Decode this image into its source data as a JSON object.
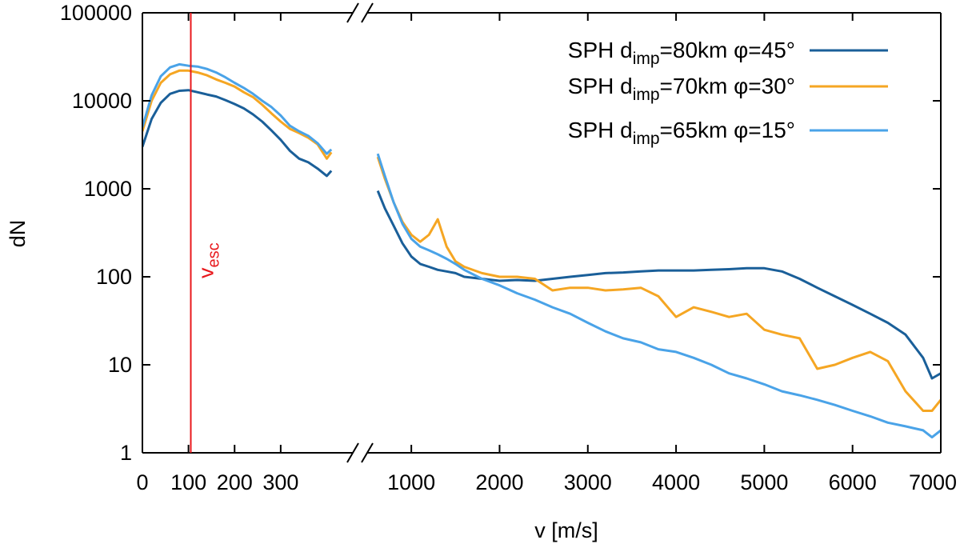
{
  "chart_data": {
    "type": "line",
    "title": "",
    "xlabel": "v [m/s]",
    "ylabel": "dN",
    "yscale": "log",
    "ylim": [
      1,
      100000
    ],
    "x_axis_break": true,
    "x_segments": [
      {
        "name": "low",
        "xlim": [
          0,
          420
        ],
        "ticks": [
          0,
          100,
          200,
          300
        ],
        "tick_labels": [
          "0",
          "100",
          "200",
          "300"
        ]
      },
      {
        "name": "high",
        "xlim": [
          500,
          7000
        ],
        "ticks": [
          1000,
          2000,
          3000,
          4000,
          5000,
          6000,
          7000
        ],
        "tick_labels": [
          "1000",
          "2000",
          "3000",
          "4000",
          "5000",
          "6000",
          "7000"
        ]
      }
    ],
    "y_ticks": [
      1,
      10,
      100,
      1000,
      10000,
      100000
    ],
    "y_tick_labels": [
      "1",
      "10",
      "100",
      "1000",
      "10000",
      "100000"
    ],
    "vline": {
      "x": 105,
      "label_main": "v",
      "label_sub": "esc",
      "color": "#e8181c"
    },
    "legend": {
      "position": "top-right"
    },
    "series": [
      {
        "name_prefix": "SPH d",
        "name_sub": "imp",
        "name_suffix": "=80km φ=45°",
        "color": "#1a5f99",
        "low": {
          "x": [
            0,
            20,
            40,
            60,
            80,
            100,
            120,
            140,
            160,
            180,
            200,
            220,
            240,
            260,
            280,
            300,
            320,
            340,
            360,
            380,
            400,
            410
          ],
          "y": [
            3000,
            6200,
            9500,
            12000,
            13000,
            13200,
            12500,
            11800,
            11200,
            10200,
            9200,
            8200,
            7000,
            5800,
            4600,
            3600,
            2700,
            2200,
            2000,
            1700,
            1400,
            1600
          ]
        },
        "high": {
          "x": [
            620,
            700,
            800,
            900,
            1000,
            1100,
            1200,
            1300,
            1400,
            1500,
            1600,
            1800,
            2000,
            2200,
            2400,
            2600,
            2800,
            3000,
            3200,
            3400,
            3600,
            3800,
            4000,
            4200,
            4400,
            4600,
            4800,
            5000,
            5200,
            5400,
            5600,
            5800,
            6000,
            6200,
            6400,
            6600,
            6800,
            6900,
            7000
          ],
          "y": [
            950,
            600,
            380,
            240,
            170,
            140,
            130,
            120,
            115,
            110,
            100,
            95,
            90,
            92,
            90,
            95,
            100,
            105,
            110,
            112,
            115,
            118,
            118,
            118,
            120,
            122,
            125,
            125,
            115,
            95,
            75,
            60,
            48,
            38,
            30,
            22,
            12,
            7,
            8
          ]
        }
      },
      {
        "name_prefix": "SPH d",
        "name_sub": "imp",
        "name_suffix": "=70km φ=30°",
        "color": "#f5a623",
        "low": {
          "x": [
            0,
            20,
            40,
            60,
            80,
            100,
            120,
            140,
            160,
            180,
            200,
            220,
            240,
            260,
            280,
            300,
            320,
            340,
            360,
            380,
            400,
            410
          ],
          "y": [
            4500,
            10000,
            16000,
            20000,
            22000,
            22000,
            21000,
            19500,
            17500,
            16000,
            14500,
            12500,
            11000,
            9000,
            7200,
            5800,
            4800,
            4300,
            3800,
            3200,
            2200,
            2600
          ]
        },
        "high": {
          "x": [
            620,
            700,
            800,
            900,
            1000,
            1100,
            1200,
            1300,
            1400,
            1500,
            1600,
            1800,
            2000,
            2200,
            2400,
            2600,
            2800,
            3000,
            3200,
            3400,
            3600,
            3800,
            4000,
            4200,
            4400,
            4600,
            4800,
            5000,
            5200,
            5400,
            5600,
            5800,
            6000,
            6200,
            6400,
            6600,
            6800,
            6900,
            7000
          ],
          "y": [
            2300,
            1300,
            700,
            420,
            300,
            250,
            300,
            450,
            220,
            150,
            130,
            110,
            100,
            100,
            95,
            70,
            75,
            75,
            70,
            72,
            75,
            60,
            35,
            45,
            40,
            35,
            38,
            25,
            22,
            20,
            9,
            10,
            12,
            14,
            11,
            5,
            3,
            3,
            4
          ]
        }
      },
      {
        "name_prefix": "SPH d",
        "name_sub": "imp",
        "name_suffix": "=65km φ=15°",
        "color": "#4aa3e8",
        "low": {
          "x": [
            0,
            20,
            40,
            60,
            80,
            100,
            120,
            140,
            160,
            180,
            200,
            220,
            240,
            260,
            280,
            300,
            320,
            340,
            360,
            380,
            400,
            410
          ],
          "y": [
            5000,
            11500,
            19000,
            24000,
            26000,
            25000,
            24500,
            23000,
            21000,
            18500,
            16000,
            14000,
            12000,
            10000,
            8500,
            6800,
            5200,
            4500,
            4000,
            3300,
            2500,
            2800
          ]
        },
        "high": {
          "x": [
            620,
            700,
            800,
            900,
            1000,
            1100,
            1200,
            1300,
            1400,
            1500,
            1600,
            1800,
            2000,
            2200,
            2400,
            2600,
            2800,
            3000,
            3200,
            3400,
            3600,
            3800,
            4000,
            4200,
            4400,
            4600,
            4800,
            5000,
            5200,
            5400,
            5600,
            5800,
            6000,
            6200,
            6400,
            6600,
            6800,
            6900,
            7000
          ],
          "y": [
            2500,
            1400,
            700,
            400,
            270,
            220,
            200,
            180,
            160,
            140,
            120,
            95,
            80,
            65,
            55,
            45,
            38,
            30,
            24,
            20,
            18,
            15,
            14,
            12,
            10,
            8,
            7,
            6,
            5,
            4.5,
            4,
            3.5,
            3,
            2.6,
            2.2,
            2,
            1.8,
            1.5,
            1.8
          ]
        }
      }
    ]
  }
}
